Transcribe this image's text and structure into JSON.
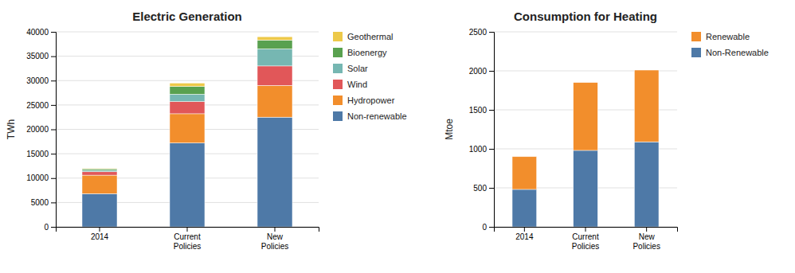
{
  "chart_data": [
    {
      "type": "bar",
      "stacked": true,
      "title": "Electric Generation",
      "ylabel": "TWh",
      "categories": [
        "2014",
        "Current\nPolicies",
        "New\nPolicies"
      ],
      "series": [
        {
          "name": "Non-renewable",
          "values": [
            6800,
            17200,
            22500
          ]
        },
        {
          "name": "Hydropower",
          "values": [
            3800,
            6000,
            6500
          ]
        },
        {
          "name": "Wind",
          "values": [
            700,
            2500,
            4000
          ]
        },
        {
          "name": "Solar",
          "values": [
            300,
            1500,
            3500
          ]
        },
        {
          "name": "Bioenergy",
          "values": [
            300,
            1600,
            1800
          ]
        },
        {
          "name": "Geothermal",
          "values": [
            100,
            700,
            700
          ]
        }
      ],
      "ylim": [
        0,
        40000
      ],
      "yticks": [
        0,
        5000,
        10000,
        15000,
        20000,
        25000,
        30000,
        35000,
        40000
      ],
      "grid": true,
      "legend": "right"
    },
    {
      "type": "bar",
      "stacked": true,
      "title": "Consumption for Heating",
      "ylabel": "Mtoe",
      "categories": [
        "2014",
        "Current\nPolicies",
        "New\nPolicies"
      ],
      "series": [
        {
          "name": "Non-Renewable",
          "values": [
            480,
            980,
            1090
          ]
        },
        {
          "name": "Renewable",
          "values": [
            420,
            870,
            920
          ]
        }
      ],
      "ylim": [
        0,
        2500
      ],
      "yticks": [
        0,
        500,
        1000,
        1500,
        2000,
        2500
      ],
      "grid": true,
      "legend": "right"
    }
  ]
}
